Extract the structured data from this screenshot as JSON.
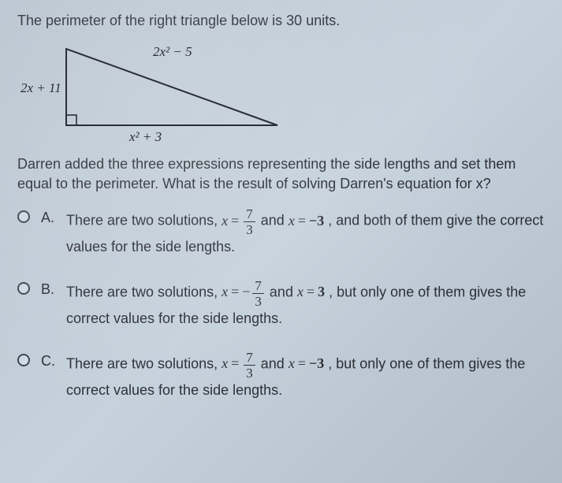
{
  "question": "The perimeter of the right triangle below is 30 units.",
  "triangle": {
    "side_left": "2x + 11",
    "side_hyp": "2x² − 5",
    "side_bottom": "x² + 3",
    "stroke": "#2a2e35",
    "stroke_width": 2
  },
  "followup": "Darren added the three expressions representing the side lengths and set them equal to the perimeter. What is the result of solving Darren's equation for x?",
  "options": [
    {
      "letter": "A.",
      "pre": "There are two solutions, ",
      "sol1_num": "7",
      "sol1_den": "3",
      "sol1_neg": false,
      "mid": " and ",
      "sol2": "−3",
      "post": " , and both of them give the correct values for the side lengths."
    },
    {
      "letter": "B.",
      "pre": "There are two solutions, ",
      "sol1_num": "7",
      "sol1_den": "3",
      "sol1_neg": true,
      "mid": " and ",
      "sol2": "3",
      "post": " , but only one of them gives the correct values for the side lengths."
    },
    {
      "letter": "C.",
      "pre": "There are two solutions, ",
      "sol1_num": "7",
      "sol1_den": "3",
      "sol1_neg": false,
      "mid": " and ",
      "sol2": "−3",
      "post": " , but only one of them gives the correct values for the side lengths."
    }
  ],
  "colors": {
    "text": "#2a2e35",
    "bg_start": "#b8c4d0",
    "bg_end": "#b0bcc8"
  }
}
